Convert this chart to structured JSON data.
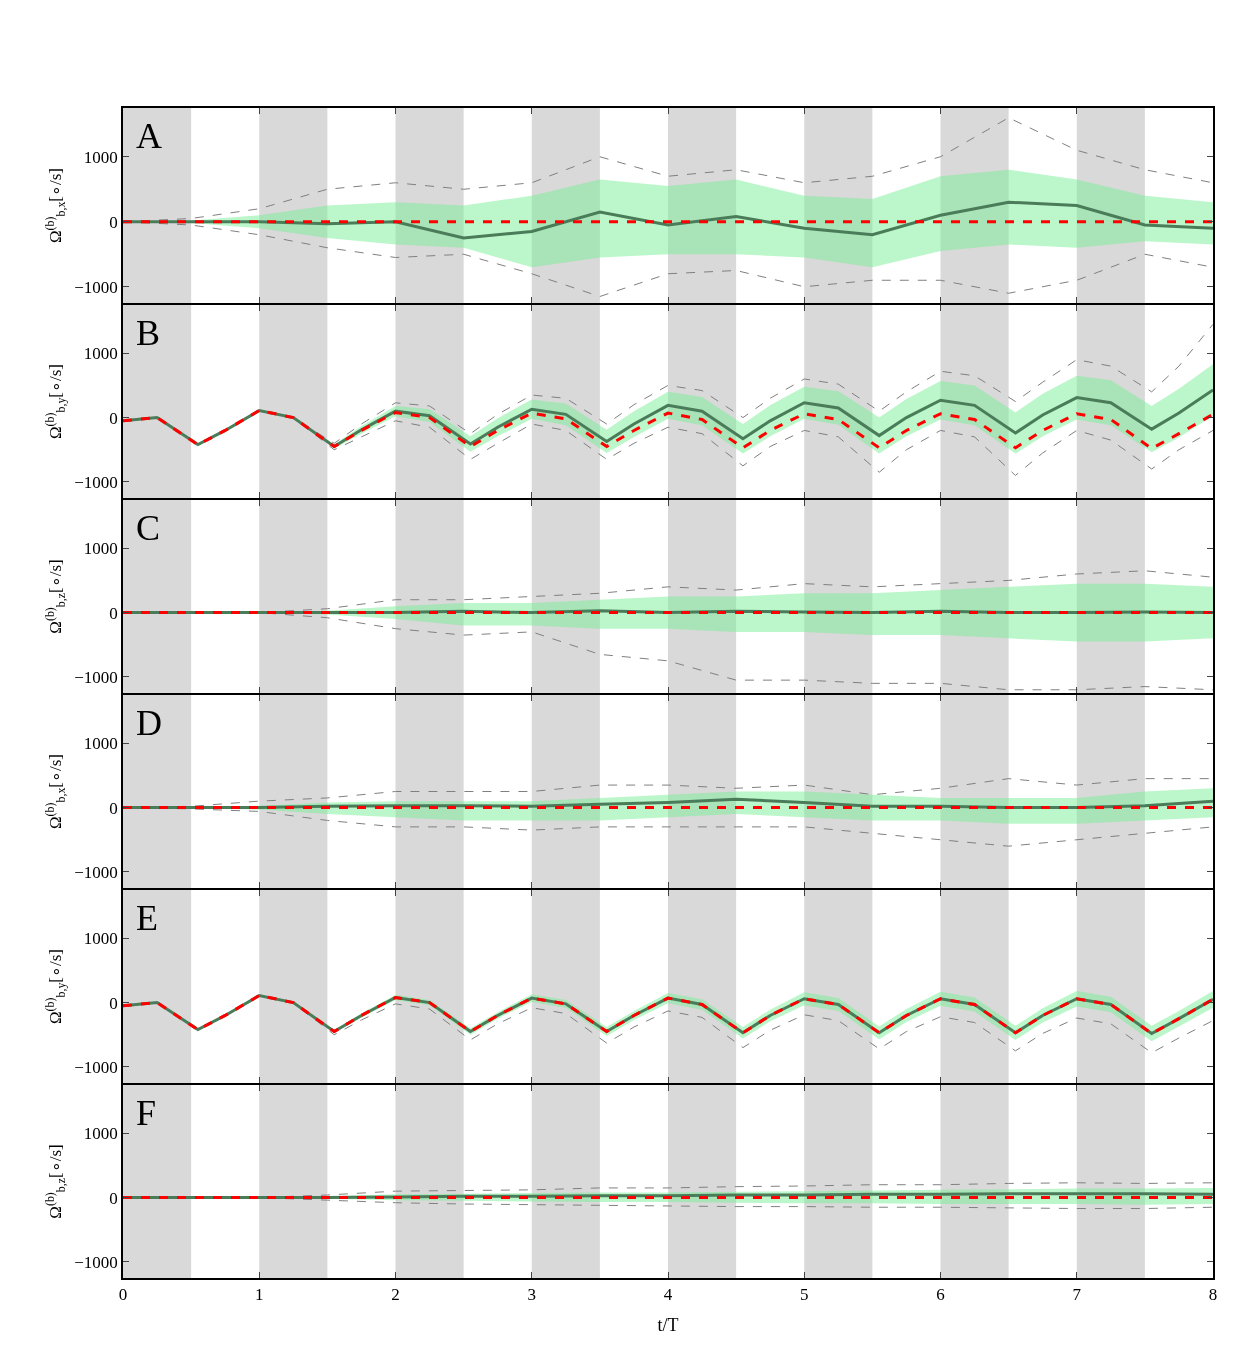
{
  "chart_data": [
    {
      "type": "line",
      "annotations": [
        "A"
      ],
      "ylabel": "Ω$^{(b)}$$_{b,x}$[∘/s]",
      "xlim": [
        0,
        8
      ],
      "xticks": [
        0,
        1,
        2,
        3,
        4,
        5,
        6,
        7,
        8
      ],
      "ylim": [
        -1250,
        1750
      ],
      "yticks": [
        -1000,
        0,
        1000
      ],
      "tick_labels": "y",
      "x": [
        0,
        0.5,
        1,
        1.5,
        2,
        2.5,
        3,
        3.5,
        4,
        4.5,
        5,
        5.5,
        6,
        6.5,
        7,
        7.5,
        8
      ],
      "bands": [
        {
          "axis": "x",
          "from": 0,
          "to": 0.5,
          "color": "#d9d9d9"
        },
        {
          "axis": "x",
          "from": 1,
          "to": 1.5,
          "color": "#d9d9d9"
        },
        {
          "axis": "x",
          "from": 2,
          "to": 2.5,
          "color": "#d9d9d9"
        },
        {
          "axis": "x",
          "from": 3,
          "to": 3.5,
          "color": "#d9d9d9"
        },
        {
          "axis": "x",
          "from": 4,
          "to": 4.5,
          "color": "#d9d9d9"
        },
        {
          "axis": "x",
          "from": 5,
          "to": 5.5,
          "color": "#d9d9d9"
        },
        {
          "axis": "x",
          "from": 6,
          "to": 6.5,
          "color": "#d9d9d9"
        },
        {
          "axis": "x",
          "from": 7,
          "to": 7.5,
          "color": "#d9d9d9"
        }
      ],
      "series": [
        {
          "color": "#808080",
          "line_style": "dashed",
          "values": [
            0,
            50,
            200,
            500,
            600,
            500,
            600,
            1000,
            700,
            800,
            600,
            700,
            1000,
            1600,
            1100,
            800,
            600
          ]
        },
        {
          "color": "#808080",
          "line_style": "dashed",
          "values": [
            0,
            -50,
            -200,
            -400,
            -550,
            -500,
            -800,
            -1150,
            -800,
            -750,
            -1000,
            -900,
            -900,
            -1100,
            -900,
            -500,
            -700
          ]
        },
        {
          "color": "#4a7c59",
          "line_style": "solid",
          "values": [
            0,
            0,
            0,
            -30,
            0,
            -250,
            -150,
            150,
            -50,
            80,
            -100,
            -200,
            100,
            300,
            250,
            -50,
            -100
          ],
          "upper": [
            0,
            20,
            100,
            250,
            300,
            250,
            400,
            650,
            550,
            650,
            400,
            350,
            700,
            800,
            650,
            400,
            300
          ],
          "lower": [
            0,
            -20,
            -100,
            -250,
            -350,
            -400,
            -700,
            -550,
            -500,
            -500,
            -550,
            -700,
            -450,
            -350,
            -400,
            -300,
            -350
          ]
        },
        {
          "color": "#ff0000",
          "line_style": "dashed",
          "values": [
            0,
            0,
            0,
            0,
            0,
            0,
            0,
            0,
            0,
            0,
            0,
            0,
            0,
            0,
            0,
            0,
            0
          ]
        }
      ]
    },
    {
      "type": "line",
      "annotations": [
        "B"
      ],
      "ylabel": "Ω$^{(b)}$$_{b,y}$[∘/s]",
      "xlim": [
        0,
        8
      ],
      "xticks": [
        0,
        1,
        2,
        3,
        4,
        5,
        6,
        7,
        8
      ],
      "ylim": [
        -1250,
        1750
      ],
      "yticks": [
        -1000,
        0,
        1000
      ],
      "tick_labels": "y",
      "x": [
        0,
        0.25,
        0.55,
        0.75,
        1,
        1.25,
        1.55,
        1.75,
        2,
        2.25,
        2.55,
        2.75,
        3,
        3.25,
        3.55,
        3.75,
        4,
        4.25,
        4.55,
        4.75,
        5,
        5.25,
        5.55,
        5.75,
        6,
        6.25,
        6.55,
        6.75,
        7,
        7.25,
        7.55,
        7.75,
        8
      ],
      "bands": [
        {
          "axis": "x",
          "from": 0,
          "to": 0.5,
          "color": "#d9d9d9"
        },
        {
          "axis": "x",
          "from": 1,
          "to": 1.5,
          "color": "#d9d9d9"
        },
        {
          "axis": "x",
          "from": 2,
          "to": 2.5,
          "color": "#d9d9d9"
        },
        {
          "axis": "x",
          "from": 3,
          "to": 3.5,
          "color": "#d9d9d9"
        },
        {
          "axis": "x",
          "from": 4,
          "to": 4.5,
          "color": "#d9d9d9"
        },
        {
          "axis": "x",
          "from": 5,
          "to": 5.5,
          "color": "#d9d9d9"
        },
        {
          "axis": "x",
          "from": 6,
          "to": 6.5,
          "color": "#d9d9d9"
        },
        {
          "axis": "x",
          "from": 7,
          "to": 7.5,
          "color": "#d9d9d9"
        }
      ],
      "series": [
        {
          "color": "#808080",
          "line_style": "dashed",
          "values": [
            -50,
            0,
            -420,
            -200,
            110,
            0,
            -400,
            -100,
            230,
            180,
            -250,
            50,
            350,
            300,
            -100,
            200,
            500,
            420,
            0,
            300,
            600,
            520,
            100,
            400,
            720,
            650,
            250,
            550,
            900,
            800,
            400,
            800,
            1450
          ]
        },
        {
          "color": "#808080",
          "line_style": "dashed",
          "values": [
            -50,
            0,
            -420,
            -200,
            110,
            0,
            -500,
            -300,
            -50,
            -150,
            -650,
            -400,
            -100,
            -200,
            -650,
            -400,
            -150,
            -250,
            -750,
            -450,
            -200,
            -300,
            -850,
            -500,
            -200,
            -300,
            -900,
            -550,
            -200,
            -350,
            -800,
            -500,
            -200
          ]
        },
        {
          "color": "#4a7c59",
          "line_style": "solid",
          "values": [
            -50,
            0,
            -420,
            -200,
            110,
            0,
            -450,
            -190,
            100,
            30,
            -410,
            -150,
            130,
            50,
            -370,
            -100,
            190,
            100,
            -330,
            -50,
            230,
            150,
            -280,
            0,
            270,
            190,
            -240,
            40,
            310,
            230,
            -180,
            70,
            430
          ],
          "upper": [
            -50,
            0,
            -420,
            -200,
            110,
            0,
            -420,
            -130,
            180,
            130,
            -290,
            -10,
            280,
            220,
            -190,
            100,
            400,
            320,
            -100,
            190,
            480,
            410,
            0,
            290,
            570,
            500,
            80,
            370,
            650,
            580,
            180,
            450,
            830
          ],
          "lower": [
            -50,
            0,
            -420,
            -200,
            110,
            0,
            -480,
            -250,
            20,
            -70,
            -530,
            -290,
            -20,
            -120,
            -550,
            -300,
            -20,
            -120,
            -560,
            -290,
            -20,
            -110,
            -560,
            -290,
            -30,
            -120,
            -560,
            -290,
            -30,
            -120,
            -540,
            -310,
            30
          ]
        },
        {
          "color": "#ff0000",
          "line_style": "dashed",
          "values": [
            -50,
            0,
            -420,
            -200,
            110,
            0,
            -450,
            -200,
            80,
            0,
            -450,
            -200,
            70,
            -20,
            -450,
            -200,
            70,
            -30,
            -470,
            -200,
            60,
            -30,
            -470,
            -200,
            60,
            -30,
            -470,
            -200,
            60,
            -30,
            -480,
            -250,
            50
          ]
        }
      ]
    },
    {
      "type": "line",
      "annotations": [
        "C"
      ],
      "ylabel": "Ω$^{(b)}$$_{b,z}$[∘/s]",
      "xlim": [
        0,
        8
      ],
      "xticks": [
        0,
        1,
        2,
        3,
        4,
        5,
        6,
        7,
        8
      ],
      "ylim": [
        -1250,
        1750
      ],
      "yticks": [
        -1000,
        0,
        1000
      ],
      "tick_labels": "y",
      "x": [
        0,
        0.5,
        1,
        1.5,
        2,
        2.5,
        3,
        3.5,
        4,
        4.5,
        5,
        5.5,
        6,
        6.5,
        7,
        7.5,
        8
      ],
      "bands": [
        {
          "axis": "x",
          "from": 0,
          "to": 0.5,
          "color": "#d9d9d9"
        },
        {
          "axis": "x",
          "from": 1,
          "to": 1.5,
          "color": "#d9d9d9"
        },
        {
          "axis": "x",
          "from": 2,
          "to": 2.5,
          "color": "#d9d9d9"
        },
        {
          "axis": "x",
          "from": 3,
          "to": 3.5,
          "color": "#d9d9d9"
        },
        {
          "axis": "x",
          "from": 4,
          "to": 4.5,
          "color": "#d9d9d9"
        },
        {
          "axis": "x",
          "from": 5,
          "to": 5.5,
          "color": "#d9d9d9"
        },
        {
          "axis": "x",
          "from": 6,
          "to": 6.5,
          "color": "#d9d9d9"
        },
        {
          "axis": "x",
          "from": 7,
          "to": 7.5,
          "color": "#d9d9d9"
        }
      ],
      "series": [
        {
          "color": "#808080",
          "line_style": "dashed",
          "values": [
            0,
            0,
            0,
            60,
            200,
            200,
            250,
            300,
            400,
            350,
            450,
            400,
            450,
            500,
            600,
            650,
            550
          ]
        },
        {
          "color": "#808080",
          "line_style": "dashed",
          "values": [
            0,
            0,
            0,
            -80,
            -250,
            -350,
            -300,
            -650,
            -750,
            -1050,
            -1050,
            -1100,
            -1100,
            -1200,
            -1200,
            -1150,
            -1200
          ]
        },
        {
          "color": "#4a7c59",
          "line_style": "solid",
          "values": [
            0,
            0,
            0,
            0,
            0,
            20,
            0,
            30,
            0,
            20,
            10,
            0,
            20,
            0,
            0,
            10,
            0
          ],
          "upper": [
            0,
            0,
            0,
            30,
            100,
            150,
            150,
            200,
            250,
            250,
            300,
            300,
            350,
            400,
            450,
            450,
            400
          ],
          "lower": [
            0,
            0,
            0,
            -30,
            -100,
            -200,
            -200,
            -250,
            -250,
            -300,
            -300,
            -350,
            -350,
            -400,
            -450,
            -450,
            -400
          ]
        },
        {
          "color": "#ff0000",
          "line_style": "dashed",
          "values": [
            0,
            0,
            0,
            0,
            0,
            0,
            0,
            0,
            0,
            0,
            0,
            0,
            0,
            0,
            0,
            0,
            0
          ]
        }
      ]
    },
    {
      "type": "line",
      "annotations": [
        "D"
      ],
      "ylabel": "Ω$^{(b)}$$_{b,x}$[∘/s]",
      "xlim": [
        0,
        8
      ],
      "xticks": [
        0,
        1,
        2,
        3,
        4,
        5,
        6,
        7,
        8
      ],
      "ylim": [
        -1250,
        1750
      ],
      "yticks": [
        -1000,
        0,
        1000
      ],
      "tick_labels": "y",
      "x": [
        0,
        0.5,
        1,
        1.5,
        2,
        2.5,
        3,
        3.5,
        4,
        4.5,
        5,
        5.5,
        6,
        6.5,
        7,
        7.5,
        8
      ],
      "bands": [
        {
          "axis": "x",
          "from": 0,
          "to": 0.5,
          "color": "#d9d9d9"
        },
        {
          "axis": "x",
          "from": 1,
          "to": 1.5,
          "color": "#d9d9d9"
        },
        {
          "axis": "x",
          "from": 2,
          "to": 2.5,
          "color": "#d9d9d9"
        },
        {
          "axis": "x",
          "from": 3,
          "to": 3.5,
          "color": "#d9d9d9"
        },
        {
          "axis": "x",
          "from": 4,
          "to": 4.5,
          "color": "#d9d9d9"
        },
        {
          "axis": "x",
          "from": 5,
          "to": 5.5,
          "color": "#d9d9d9"
        },
        {
          "axis": "x",
          "from": 6,
          "to": 6.5,
          "color": "#d9d9d9"
        },
        {
          "axis": "x",
          "from": 7,
          "to": 7.5,
          "color": "#d9d9d9"
        }
      ],
      "series": [
        {
          "color": "#808080",
          "line_style": "dashed",
          "values": [
            0,
            20,
            100,
            150,
            250,
            250,
            250,
            350,
            350,
            300,
            350,
            200,
            300,
            450,
            350,
            450,
            450
          ]
        },
        {
          "color": "#808080",
          "line_style": "dashed",
          "values": [
            0,
            -20,
            -60,
            -200,
            -300,
            -300,
            -350,
            -300,
            -300,
            -300,
            -300,
            -400,
            -500,
            -600,
            -500,
            -400,
            -300
          ]
        },
        {
          "color": "#4a7c59",
          "line_style": "solid",
          "values": [
            0,
            0,
            0,
            20,
            30,
            30,
            20,
            50,
            80,
            130,
            80,
            20,
            20,
            0,
            0,
            30,
            100
          ],
          "upper": [
            0,
            10,
            30,
            80,
            100,
            100,
            100,
            150,
            200,
            250,
            250,
            200,
            150,
            150,
            150,
            250,
            300
          ],
          "lower": [
            0,
            -10,
            -30,
            -100,
            -150,
            -200,
            -200,
            -200,
            -150,
            -100,
            -150,
            -200,
            -200,
            -250,
            -250,
            -200,
            -150
          ]
        },
        {
          "color": "#ff0000",
          "line_style": "dashed",
          "values": [
            0,
            0,
            0,
            0,
            0,
            0,
            0,
            0,
            0,
            0,
            0,
            0,
            0,
            0,
            0,
            0,
            0
          ]
        }
      ]
    },
    {
      "type": "line",
      "annotations": [
        "E"
      ],
      "ylabel": "Ω$^{(b)}$$_{b,y}$[∘/s]",
      "xlim": [
        0,
        8
      ],
      "xticks": [
        0,
        1,
        2,
        3,
        4,
        5,
        6,
        7,
        8
      ],
      "ylim": [
        -1250,
        1750
      ],
      "yticks": [
        -1000,
        0,
        1000
      ],
      "tick_labels": "y",
      "x": [
        0,
        0.25,
        0.55,
        0.75,
        1,
        1.25,
        1.55,
        1.75,
        2,
        2.25,
        2.55,
        2.75,
        3,
        3.25,
        3.55,
        3.75,
        4,
        4.25,
        4.55,
        4.75,
        5,
        5.25,
        5.55,
        5.75,
        6,
        6.25,
        6.55,
        6.75,
        7,
        7.25,
        7.55,
        7.75,
        8
      ],
      "bands": [
        {
          "axis": "x",
          "from": 0,
          "to": 0.5,
          "color": "#d9d9d9"
        },
        {
          "axis": "x",
          "from": 1,
          "to": 1.5,
          "color": "#d9d9d9"
        },
        {
          "axis": "x",
          "from": 2,
          "to": 2.5,
          "color": "#d9d9d9"
        },
        {
          "axis": "x",
          "from": 3,
          "to": 3.5,
          "color": "#d9d9d9"
        },
        {
          "axis": "x",
          "from": 4,
          "to": 4.5,
          "color": "#d9d9d9"
        },
        {
          "axis": "x",
          "from": 5,
          "to": 5.5,
          "color": "#d9d9d9"
        },
        {
          "axis": "x",
          "from": 6,
          "to": 6.5,
          "color": "#d9d9d9"
        },
        {
          "axis": "x",
          "from": 7,
          "to": 7.5,
          "color": "#d9d9d9"
        }
      ],
      "series": [
        {
          "color": "#808080",
          "line_style": "dashed",
          "values": [
            -50,
            0,
            -420,
            -200,
            110,
            0,
            -500,
            -270,
            -20,
            -100,
            -580,
            -330,
            -80,
            -170,
            -630,
            -380,
            -130,
            -230,
            -700,
            -430,
            -190,
            -280,
            -720,
            -450,
            -220,
            -310,
            -750,
            -480,
            -240,
            -330,
            -780,
            -550,
            -280
          ]
        },
        {
          "color": "#4a7c59",
          "line_style": "solid",
          "values": [
            -50,
            0,
            -420,
            -200,
            110,
            0,
            -450,
            -200,
            80,
            0,
            -450,
            -200,
            70,
            -20,
            -450,
            -200,
            70,
            -30,
            -470,
            -200,
            60,
            -30,
            -470,
            -200,
            60,
            -30,
            -470,
            -200,
            60,
            -30,
            -480,
            -250,
            50
          ],
          "upper": [
            -50,
            0,
            -420,
            -200,
            110,
            0,
            -430,
            -170,
            120,
            40,
            -400,
            -150,
            130,
            40,
            -380,
            -130,
            150,
            50,
            -380,
            -110,
            160,
            70,
            -370,
            -100,
            170,
            80,
            -360,
            -90,
            180,
            90,
            -360,
            -130,
            180
          ],
          "lower": [
            -50,
            0,
            -420,
            -200,
            110,
            0,
            -470,
            -230,
            40,
            -40,
            -500,
            -250,
            10,
            -80,
            -520,
            -270,
            -10,
            -110,
            -560,
            -290,
            -40,
            -130,
            -570,
            -300,
            -50,
            -140,
            -580,
            -310,
            -60,
            -150,
            -600,
            -370,
            -80
          ]
        },
        {
          "color": "#ff0000",
          "line_style": "dashed",
          "values": [
            -50,
            0,
            -420,
            -200,
            110,
            0,
            -450,
            -200,
            80,
            0,
            -450,
            -200,
            70,
            -20,
            -450,
            -200,
            70,
            -30,
            -470,
            -200,
            60,
            -30,
            -470,
            -200,
            60,
            -30,
            -470,
            -200,
            60,
            -30,
            -480,
            -250,
            50
          ]
        }
      ]
    },
    {
      "type": "line",
      "annotations": [
        "F"
      ],
      "ylabel": "Ω$^{(b)}$$_{b,z}$[∘/s]",
      "xlabel": "t/T",
      "xlim": [
        0,
        8
      ],
      "xticks": [
        0,
        1,
        2,
        3,
        4,
        5,
        6,
        7,
        8
      ],
      "ylim": [
        -1250,
        1750
      ],
      "yticks": [
        -1000,
        0,
        1000
      ],
      "x": [
        0,
        0.5,
        1,
        1.5,
        2,
        2.5,
        3,
        3.5,
        4,
        4.5,
        5,
        5.5,
        6,
        6.5,
        7,
        7.5,
        8
      ],
      "bands": [
        {
          "axis": "x",
          "from": 0,
          "to": 0.5,
          "color": "#d9d9d9"
        },
        {
          "axis": "x",
          "from": 1,
          "to": 1.5,
          "color": "#d9d9d9"
        },
        {
          "axis": "x",
          "from": 2,
          "to": 2.5,
          "color": "#d9d9d9"
        },
        {
          "axis": "x",
          "from": 3,
          "to": 3.5,
          "color": "#d9d9d9"
        },
        {
          "axis": "x",
          "from": 4,
          "to": 4.5,
          "color": "#d9d9d9"
        },
        {
          "axis": "x",
          "from": 5,
          "to": 5.5,
          "color": "#d9d9d9"
        },
        {
          "axis": "x",
          "from": 6,
          "to": 6.5,
          "color": "#d9d9d9"
        },
        {
          "axis": "x",
          "from": 7,
          "to": 7.5,
          "color": "#d9d9d9"
        }
      ],
      "series": [
        {
          "color": "#808080",
          "line_style": "dashed",
          "values": [
            0,
            0,
            0,
            40,
            100,
            110,
            120,
            150,
            150,
            170,
            180,
            200,
            200,
            220,
            230,
            220,
            230
          ]
        },
        {
          "color": "#808080",
          "line_style": "dashed",
          "values": [
            0,
            0,
            0,
            -40,
            -80,
            -100,
            -110,
            -120,
            -130,
            -140,
            -140,
            -150,
            -150,
            -160,
            -170,
            -170,
            -150
          ]
        },
        {
          "color": "#4a7c59",
          "line_style": "solid",
          "values": [
            0,
            0,
            0,
            0,
            10,
            20,
            20,
            30,
            30,
            40,
            40,
            50,
            50,
            60,
            60,
            60,
            50
          ],
          "upper": [
            0,
            0,
            0,
            20,
            50,
            60,
            70,
            80,
            80,
            90,
            100,
            110,
            120,
            130,
            140,
            140,
            150
          ],
          "lower": [
            0,
            0,
            0,
            -20,
            -40,
            -50,
            -60,
            -70,
            -70,
            -80,
            -90,
            -90,
            -100,
            -100,
            -100,
            -110,
            -100
          ]
        },
        {
          "color": "#ff0000",
          "line_style": "dashed",
          "values": [
            0,
            0,
            0,
            0,
            0,
            0,
            0,
            0,
            0,
            0,
            0,
            0,
            0,
            0,
            0,
            0,
            0
          ]
        }
      ]
    }
  ]
}
